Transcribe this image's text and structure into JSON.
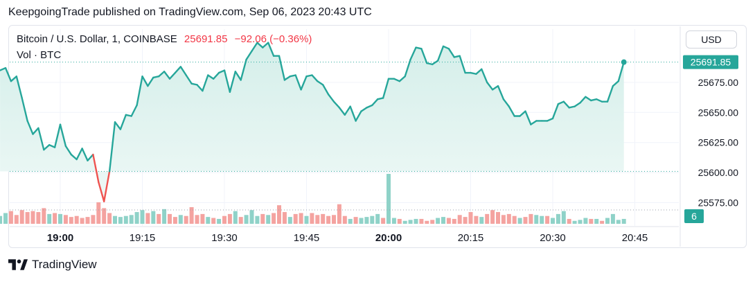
{
  "header": {
    "publisher_line": "KeepgoingTrade published on TradingView.com, Sep 06, 2023 20:43 UTC"
  },
  "legend": {
    "symbol": "Bitcoin / U.S. Dollar, 1, COINBASE",
    "price": "25691.85",
    "change": "−92.06 (−0.36%)",
    "volume_label": "Vol · BTC"
  },
  "currency_button": "USD",
  "footer": {
    "brand": "TradingView"
  },
  "colors": {
    "up": "#26a69a",
    "down": "#ef5350",
    "vol_up": "#8fd2c8",
    "vol_down": "#f4a3a0",
    "area_top": "#d5efea"
  },
  "chart_data": {
    "type": "line",
    "title": "Bitcoin / U.S. Dollar, 1, COINBASE",
    "x_tick_labels": [
      "19:00",
      "19:15",
      "19:30",
      "19:45",
      "20:00",
      "20:15",
      "20:30",
      "20:45"
    ],
    "y_tick_labels": [
      "25575.00",
      "25600.00",
      "25625.00",
      "25650.00",
      "25675.00"
    ],
    "ylim": [
      25558,
      25717
    ],
    "last_price": 25691.85,
    "last_price_label": "25691.85",
    "volume_axis_label": "6",
    "grid": true,
    "close_series": [
      {
        "t": "18:49",
        "v": 25685
      },
      {
        "t": "18:50",
        "v": 25687
      },
      {
        "t": "18:51",
        "v": 25676
      },
      {
        "t": "18:52",
        "v": 25680
      },
      {
        "t": "18:53",
        "v": 25662
      },
      {
        "t": "18:54",
        "v": 25643
      },
      {
        "t": "18:55",
        "v": 25632
      },
      {
        "t": "18:56",
        "v": 25637
      },
      {
        "t": "18:57",
        "v": 25619
      },
      {
        "t": "18:58",
        "v": 25623
      },
      {
        "t": "18:59",
        "v": 25621
      },
      {
        "t": "19:00",
        "v": 25640
      },
      {
        "t": "19:01",
        "v": 25622
      },
      {
        "t": "19:02",
        "v": 25615
      },
      {
        "t": "19:03",
        "v": 25611
      },
      {
        "t": "19:04",
        "v": 25620
      },
      {
        "t": "19:05",
        "v": 25610
      },
      {
        "t": "19:06",
        "v": 25615
      },
      {
        "t": "19:07",
        "v": 25592
      },
      {
        "t": "19:08",
        "v": 25576
      },
      {
        "t": "19:09",
        "v": 25601
      },
      {
        "t": "19:10",
        "v": 25642
      },
      {
        "t": "19:11",
        "v": 25636
      },
      {
        "t": "19:12",
        "v": 25648
      },
      {
        "t": "19:13",
        "v": 25647
      },
      {
        "t": "19:14",
        "v": 25656
      },
      {
        "t": "19:15",
        "v": 25680
      },
      {
        "t": "19:16",
        "v": 25672
      },
      {
        "t": "19:17",
        "v": 25679
      },
      {
        "t": "19:18",
        "v": 25680
      },
      {
        "t": "19:19",
        "v": 25684
      },
      {
        "t": "19:20",
        "v": 25678
      },
      {
        "t": "19:21",
        "v": 25683
      },
      {
        "t": "19:22",
        "v": 25688
      },
      {
        "t": "19:23",
        "v": 25681
      },
      {
        "t": "19:24",
        "v": 25674
      },
      {
        "t": "19:25",
        "v": 25673
      },
      {
        "t": "19:26",
        "v": 25668
      },
      {
        "t": "19:27",
        "v": 25681
      },
      {
        "t": "19:28",
        "v": 25678
      },
      {
        "t": "19:29",
        "v": 25683
      },
      {
        "t": "19:30",
        "v": 25685
      },
      {
        "t": "19:31",
        "v": 25667
      },
      {
        "t": "19:32",
        "v": 25684
      },
      {
        "t": "19:33",
        "v": 25677
      },
      {
        "t": "19:34",
        "v": 25694
      },
      {
        "t": "19:35",
        "v": 25701
      },
      {
        "t": "19:36",
        "v": 25708
      },
      {
        "t": "19:37",
        "v": 25704
      },
      {
        "t": "19:38",
        "v": 25708
      },
      {
        "t": "19:39",
        "v": 25697
      },
      {
        "t": "19:40",
        "v": 25697
      },
      {
        "t": "19:41",
        "v": 25677
      },
      {
        "t": "19:42",
        "v": 25680
      },
      {
        "t": "19:43",
        "v": 25681
      },
      {
        "t": "19:44",
        "v": 25669
      },
      {
        "t": "19:45",
        "v": 25680
      },
      {
        "t": "19:46",
        "v": 25681
      },
      {
        "t": "19:47",
        "v": 25676
      },
      {
        "t": "19:48",
        "v": 25673
      },
      {
        "t": "19:49",
        "v": 25665
      },
      {
        "t": "19:50",
        "v": 25659
      },
      {
        "t": "19:51",
        "v": 25654
      },
      {
        "t": "19:52",
        "v": 25648
      },
      {
        "t": "19:53",
        "v": 25655
      },
      {
        "t": "19:54",
        "v": 25643
      },
      {
        "t": "19:55",
        "v": 25651
      },
      {
        "t": "19:56",
        "v": 25654
      },
      {
        "t": "19:57",
        "v": 25656
      },
      {
        "t": "19:58",
        "v": 25661
      },
      {
        "t": "19:59",
        "v": 25662
      },
      {
        "t": "20:00",
        "v": 25678
      },
      {
        "t": "20:01",
        "v": 25678
      },
      {
        "t": "20:02",
        "v": 25676
      },
      {
        "t": "20:03",
        "v": 25680
      },
      {
        "t": "20:04",
        "v": 25694
      },
      {
        "t": "20:05",
        "v": 25704
      },
      {
        "t": "20:06",
        "v": 25703
      },
      {
        "t": "20:07",
        "v": 25691
      },
      {
        "t": "20:08",
        "v": 25690
      },
      {
        "t": "20:09",
        "v": 25693
      },
      {
        "t": "20:10",
        "v": 25705
      },
      {
        "t": "20:11",
        "v": 25703
      },
      {
        "t": "20:12",
        "v": 25696
      },
      {
        "t": "20:13",
        "v": 25697
      },
      {
        "t": "20:14",
        "v": 25683
      },
      {
        "t": "20:15",
        "v": 25683
      },
      {
        "t": "20:16",
        "v": 25682
      },
      {
        "t": "20:17",
        "v": 25686
      },
      {
        "t": "20:18",
        "v": 25675
      },
      {
        "t": "20:19",
        "v": 25669
      },
      {
        "t": "20:20",
        "v": 25672
      },
      {
        "t": "20:21",
        "v": 25661
      },
      {
        "t": "20:22",
        "v": 25655
      },
      {
        "t": "20:23",
        "v": 25647
      },
      {
        "t": "20:24",
        "v": 25647
      },
      {
        "t": "20:25",
        "v": 25651
      },
      {
        "t": "20:26",
        "v": 25640
      },
      {
        "t": "20:27",
        "v": 25643
      },
      {
        "t": "20:28",
        "v": 25643
      },
      {
        "t": "20:29",
        "v": 25643
      },
      {
        "t": "20:30",
        "v": 25645
      },
      {
        "t": "20:31",
        "v": 25657
      },
      {
        "t": "20:32",
        "v": 25659
      },
      {
        "t": "20:33",
        "v": 25654
      },
      {
        "t": "20:34",
        "v": 25655
      },
      {
        "t": "20:35",
        "v": 25658
      },
      {
        "t": "20:36",
        "v": 25663
      },
      {
        "t": "20:37",
        "v": 25660
      },
      {
        "t": "20:38",
        "v": 25661
      },
      {
        "t": "20:39",
        "v": 25659
      },
      {
        "t": "20:40",
        "v": 25659
      },
      {
        "t": "20:41",
        "v": 25672
      },
      {
        "t": "20:42",
        "v": 25676
      },
      {
        "t": "20:43",
        "v": 25691.85
      }
    ],
    "volume_series": [
      {
        "t": "18:49",
        "v": 0.8,
        "up": true
      },
      {
        "t": "18:50",
        "v": 1.1,
        "up": true
      },
      {
        "t": "18:51",
        "v": 1.3,
        "up": false
      },
      {
        "t": "18:52",
        "v": 0.9,
        "up": false
      },
      {
        "t": "18:53",
        "v": 1.4,
        "up": false
      },
      {
        "t": "18:54",
        "v": 1.2,
        "up": false
      },
      {
        "t": "18:55",
        "v": 1.3,
        "up": false
      },
      {
        "t": "18:56",
        "v": 1.2,
        "up": false
      },
      {
        "t": "18:57",
        "v": 1.6,
        "up": false
      },
      {
        "t": "18:58",
        "v": 1.0,
        "up": true
      },
      {
        "t": "18:59",
        "v": 1.1,
        "up": false
      },
      {
        "t": "19:00",
        "v": 1.0,
        "up": true
      },
      {
        "t": "19:01",
        "v": 0.9,
        "up": false
      },
      {
        "t": "19:02",
        "v": 0.7,
        "up": false
      },
      {
        "t": "19:03",
        "v": 0.8,
        "up": false
      },
      {
        "t": "19:04",
        "v": 0.6,
        "up": false
      },
      {
        "t": "19:05",
        "v": 0.7,
        "up": false
      },
      {
        "t": "19:06",
        "v": 0.9,
        "up": false
      },
      {
        "t": "19:07",
        "v": 2.2,
        "up": false
      },
      {
        "t": "19:08",
        "v": 1.6,
        "up": false
      },
      {
        "t": "19:09",
        "v": 1.1,
        "up": false
      },
      {
        "t": "19:10",
        "v": 0.8,
        "up": true
      },
      {
        "t": "19:11",
        "v": 0.7,
        "up": true
      },
      {
        "t": "19:12",
        "v": 0.8,
        "up": true
      },
      {
        "t": "19:13",
        "v": 0.9,
        "up": true
      },
      {
        "t": "19:14",
        "v": 1.2,
        "up": true
      },
      {
        "t": "19:15",
        "v": 1.4,
        "up": true
      },
      {
        "t": "19:16",
        "v": 1.1,
        "up": false
      },
      {
        "t": "19:17",
        "v": 1.3,
        "up": true
      },
      {
        "t": "19:18",
        "v": 1.0,
        "up": false
      },
      {
        "t": "19:19",
        "v": 1.5,
        "up": true
      },
      {
        "t": "19:20",
        "v": 1.0,
        "up": false
      },
      {
        "t": "19:21",
        "v": 0.7,
        "up": false
      },
      {
        "t": "19:22",
        "v": 0.9,
        "up": true
      },
      {
        "t": "19:23",
        "v": 0.8,
        "up": false
      },
      {
        "t": "19:24",
        "v": 1.7,
        "up": false
      },
      {
        "t": "19:25",
        "v": 0.9,
        "up": false
      },
      {
        "t": "19:26",
        "v": 1.0,
        "up": false
      },
      {
        "t": "19:27",
        "v": 0.7,
        "up": true
      },
      {
        "t": "19:28",
        "v": 0.6,
        "up": false
      },
      {
        "t": "19:29",
        "v": 0.5,
        "up": true
      },
      {
        "t": "19:30",
        "v": 0.8,
        "up": false
      },
      {
        "t": "19:31",
        "v": 1.0,
        "up": false
      },
      {
        "t": "19:32",
        "v": 1.3,
        "up": true
      },
      {
        "t": "19:33",
        "v": 0.7,
        "up": false
      },
      {
        "t": "19:34",
        "v": 0.9,
        "up": true
      },
      {
        "t": "19:35",
        "v": 1.4,
        "up": true
      },
      {
        "t": "19:36",
        "v": 0.8,
        "up": true
      },
      {
        "t": "19:37",
        "v": 1.0,
        "up": false
      },
      {
        "t": "19:38",
        "v": 0.9,
        "up": true
      },
      {
        "t": "19:39",
        "v": 1.1,
        "up": false
      },
      {
        "t": "19:40",
        "v": 1.9,
        "up": false
      },
      {
        "t": "19:41",
        "v": 1.2,
        "up": false
      },
      {
        "t": "19:42",
        "v": 0.7,
        "up": true
      },
      {
        "t": "19:43",
        "v": 1.0,
        "up": false
      },
      {
        "t": "19:44",
        "v": 1.1,
        "up": false
      },
      {
        "t": "19:45",
        "v": 0.8,
        "up": true
      },
      {
        "t": "19:46",
        "v": 1.1,
        "up": false
      },
      {
        "t": "19:47",
        "v": 0.9,
        "up": false
      },
      {
        "t": "19:48",
        "v": 1.0,
        "up": false
      },
      {
        "t": "19:49",
        "v": 0.8,
        "up": false
      },
      {
        "t": "19:50",
        "v": 0.9,
        "up": false
      },
      {
        "t": "19:51",
        "v": 2.0,
        "up": false
      },
      {
        "t": "19:52",
        "v": 0.8,
        "up": false
      },
      {
        "t": "19:53",
        "v": 0.5,
        "up": true
      },
      {
        "t": "19:54",
        "v": 0.7,
        "up": false
      },
      {
        "t": "19:55",
        "v": 0.6,
        "up": true
      },
      {
        "t": "19:56",
        "v": 0.7,
        "up": true
      },
      {
        "t": "19:57",
        "v": 0.8,
        "up": true
      },
      {
        "t": "19:58",
        "v": 1.0,
        "up": true
      },
      {
        "t": "19:59",
        "v": 0.6,
        "up": false
      },
      {
        "t": "20:00",
        "v": 5.1,
        "up": true
      },
      {
        "t": "20:01",
        "v": 0.6,
        "up": true
      },
      {
        "t": "20:02",
        "v": 0.5,
        "up": false
      },
      {
        "t": "20:03",
        "v": 0.3,
        "up": true
      },
      {
        "t": "20:04",
        "v": 0.4,
        "up": true
      },
      {
        "t": "20:05",
        "v": 0.5,
        "up": true
      },
      {
        "t": "20:06",
        "v": 0.5,
        "up": false
      },
      {
        "t": "20:07",
        "v": 0.3,
        "up": false
      },
      {
        "t": "20:08",
        "v": 0.4,
        "up": false
      },
      {
        "t": "20:09",
        "v": 0.6,
        "up": true
      },
      {
        "t": "20:10",
        "v": 0.7,
        "up": true
      },
      {
        "t": "20:11",
        "v": 0.6,
        "up": false
      },
      {
        "t": "20:12",
        "v": 0.5,
        "up": false
      },
      {
        "t": "20:13",
        "v": 0.9,
        "up": false
      },
      {
        "t": "20:14",
        "v": 0.7,
        "up": false
      },
      {
        "t": "20:15",
        "v": 1.2,
        "up": false
      },
      {
        "t": "20:16",
        "v": 0.8,
        "up": false
      },
      {
        "t": "20:17",
        "v": 0.7,
        "up": true
      },
      {
        "t": "20:18",
        "v": 1.0,
        "up": false
      },
      {
        "t": "20:19",
        "v": 1.4,
        "up": false
      },
      {
        "t": "20:20",
        "v": 1.2,
        "up": false
      },
      {
        "t": "20:21",
        "v": 0.9,
        "up": false
      },
      {
        "t": "20:22",
        "v": 1.0,
        "up": false
      },
      {
        "t": "20:23",
        "v": 0.8,
        "up": false
      },
      {
        "t": "20:24",
        "v": 0.6,
        "up": true
      },
      {
        "t": "20:25",
        "v": 0.7,
        "up": false
      },
      {
        "t": "20:26",
        "v": 1.0,
        "up": false
      },
      {
        "t": "20:27",
        "v": 0.9,
        "up": true
      },
      {
        "t": "20:28",
        "v": 0.8,
        "up": true
      },
      {
        "t": "20:29",
        "v": 0.8,
        "up": false
      },
      {
        "t": "20:30",
        "v": 0.6,
        "up": true
      },
      {
        "t": "20:31",
        "v": 1.0,
        "up": true
      },
      {
        "t": "20:32",
        "v": 1.3,
        "up": true
      },
      {
        "t": "20:33",
        "v": 0.5,
        "up": false
      },
      {
        "t": "20:34",
        "v": 0.3,
        "up": true
      },
      {
        "t": "20:35",
        "v": 0.4,
        "up": true
      },
      {
        "t": "20:36",
        "v": 0.6,
        "up": true
      },
      {
        "t": "20:37",
        "v": 0.5,
        "up": false
      },
      {
        "t": "20:38",
        "v": 0.5,
        "up": true
      },
      {
        "t": "20:39",
        "v": 0.3,
        "up": false
      },
      {
        "t": "20:40",
        "v": 0.6,
        "up": true
      },
      {
        "t": "20:41",
        "v": 1.0,
        "up": true
      },
      {
        "t": "20:42",
        "v": 0.4,
        "up": true
      },
      {
        "t": "20:43",
        "v": 0.5,
        "up": true
      }
    ]
  }
}
